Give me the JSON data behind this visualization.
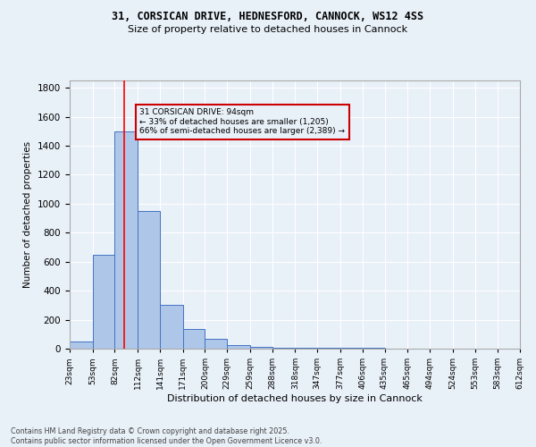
{
  "title1": "31, CORSICAN DRIVE, HEDNESFORD, CANNOCK, WS12 4SS",
  "title2": "Size of property relative to detached houses in Cannock",
  "xlabel": "Distribution of detached houses by size in Cannock",
  "ylabel": "Number of detached properties",
  "bin_labels": [
    "23sqm",
    "53sqm",
    "82sqm",
    "112sqm",
    "141sqm",
    "171sqm",
    "200sqm",
    "229sqm",
    "259sqm",
    "288sqm",
    "318sqm",
    "347sqm",
    "377sqm",
    "406sqm",
    "435sqm",
    "465sqm",
    "494sqm",
    "524sqm",
    "553sqm",
    "583sqm",
    "612sqm"
  ],
  "bin_edges": [
    23,
    53,
    82,
    112,
    141,
    171,
    200,
    229,
    259,
    288,
    318,
    347,
    377,
    406,
    435,
    465,
    494,
    524,
    553,
    583,
    612
  ],
  "bar_heights": [
    50,
    650,
    1500,
    950,
    300,
    135,
    65,
    25,
    10,
    5,
    5,
    5,
    5,
    5,
    0,
    0,
    0,
    0,
    0,
    0
  ],
  "bar_color": "#aec6e8",
  "bar_edge_color": "#4472c4",
  "bg_color": "#e8f0f8",
  "grid_color": "#ffffff",
  "redline_x": 94,
  "annotation_text": "31 CORSICAN DRIVE: 94sqm\n← 33% of detached houses are smaller (1,205)\n66% of semi-detached houses are larger (2,389) →",
  "annotation_box_edge": "#cc0000",
  "ylim": [
    0,
    1850
  ],
  "yticks": [
    0,
    200,
    400,
    600,
    800,
    1000,
    1200,
    1400,
    1600,
    1800
  ],
  "footnote": "Contains HM Land Registry data © Crown copyright and database right 2025.\nContains public sector information licensed under the Open Government Licence v3.0."
}
